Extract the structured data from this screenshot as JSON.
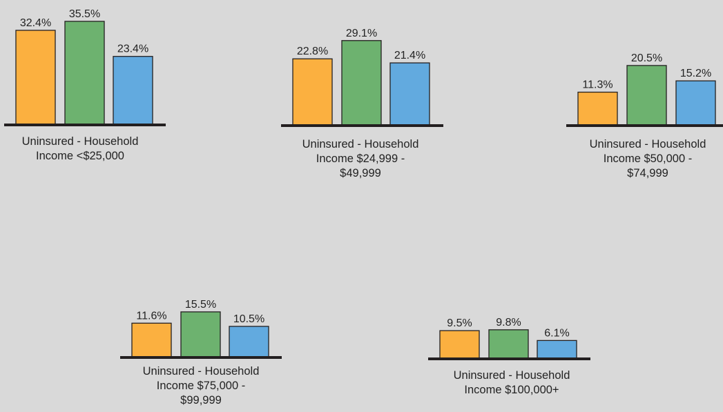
{
  "colors": {
    "background": "#d9d9d9",
    "axis": "#231f20",
    "bar_stroke": "#231f20",
    "series": [
      "#fbb040",
      "#6db26f",
      "#62aadf"
    ]
  },
  "chart_data": [
    {
      "type": "bar",
      "categories": [
        "1",
        "2",
        "3"
      ],
      "values": [
        32.4,
        35.5,
        23.4
      ],
      "labels": [
        "32.4%",
        "35.5%",
        "23.4%"
      ],
      "caption": [
        "Uninsured - Household",
        "Income <$25,000"
      ],
      "ylim": [
        0,
        40
      ]
    },
    {
      "type": "bar",
      "categories": [
        "1",
        "2",
        "3"
      ],
      "values": [
        22.8,
        29.1,
        21.4
      ],
      "labels": [
        "22.8%",
        "29.1%",
        "21.4%"
      ],
      "caption": [
        "Uninsured - Household",
        "Income $24,999 -",
        "$49,999"
      ],
      "ylim": [
        0,
        40
      ]
    },
    {
      "type": "bar",
      "categories": [
        "1",
        "2",
        "3"
      ],
      "values": [
        11.3,
        20.5,
        15.2
      ],
      "labels": [
        "11.3%",
        "20.5%",
        "15.2%"
      ],
      "caption": [
        "Uninsured - Household",
        "Income $50,000 -",
        "$74,999"
      ],
      "ylim": [
        0,
        40
      ]
    },
    {
      "type": "bar",
      "categories": [
        "1",
        "2",
        "3"
      ],
      "values": [
        11.6,
        15.5,
        10.5
      ],
      "labels": [
        "11.6%",
        "15.5%",
        "10.5%"
      ],
      "caption": [
        "Uninsured - Household",
        "Income $75,000 -",
        "$99,999"
      ],
      "ylim": [
        0,
        40
      ]
    },
    {
      "type": "bar",
      "categories": [
        "1",
        "2",
        "3"
      ],
      "values": [
        9.5,
        9.8,
        6.1
      ],
      "labels": [
        "9.5%",
        "9.8%",
        "6.1%"
      ],
      "caption": [
        "Uninsured - Household",
        "Income $100,000+"
      ],
      "ylim": [
        0,
        40
      ]
    }
  ]
}
